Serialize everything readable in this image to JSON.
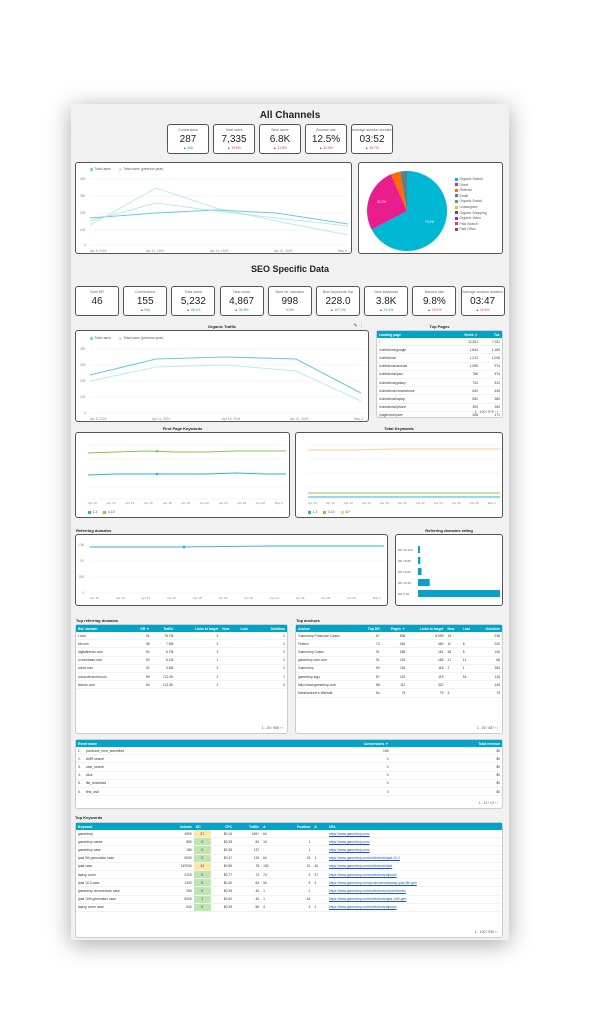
{
  "all_channels": {
    "title": "All Channels",
    "scorecards": [
      {
        "label": "Conversions",
        "value": "287",
        "delta": "▲ N/A",
        "dir": "up"
      },
      {
        "label": "Total users",
        "value": "7,335",
        "delta": "▲ 19.8%",
        "dir": "down"
      },
      {
        "label": "New users",
        "value": "6.8K",
        "delta": "▲ 21.8%",
        "dir": "down"
      },
      {
        "label": "Bounce rate",
        "value": "12.5%",
        "delta": "▲ 42.9%",
        "dir": "down"
      },
      {
        "label": "Average session duration",
        "value": "03:52",
        "delta": "▲ 16.7%",
        "dir": "down"
      }
    ]
  },
  "seo": {
    "title": "SEO Specific Data",
    "scorecards": [
      {
        "label": "Num DR",
        "value": "46",
        "delta": "",
        "dir": "up"
      },
      {
        "label": "Conversions",
        "value": "155",
        "delta": "▲ N/A",
        "dir": "up"
      },
      {
        "label": "Total users",
        "value": "5,232",
        "delta": "▲ 28.1%",
        "dir": "up"
      },
      {
        "label": "New users",
        "value": "4,867",
        "delta": "▲ 31.8%",
        "dir": "up"
      },
      {
        "label": "Num ref. domains",
        "value": "998",
        "delta": "0.0%",
        "dir": "up"
      },
      {
        "label": "Num keywords Top",
        "value": "228.0",
        "delta": "▲ 107.1%",
        "dir": "up"
      },
      {
        "label": "Num keywords",
        "value": "3.8K",
        "delta": "▲ 21.3%",
        "dir": "up"
      },
      {
        "label": "Bounce rate",
        "value": "9.8%",
        "delta": "▲ 23.9%",
        "dir": "down"
      },
      {
        "label": "Average session duration",
        "value": "03:47",
        "delta": "▲ 11.6%",
        "dir": "down"
      }
    ]
  },
  "charts": {
    "total_users": {
      "legend": [
        "Total users",
        "Total users (previous year)"
      ],
      "x_labels": [
        "Apr 6, 2024",
        "Apr 11, 2024",
        "Apr 16, 2024",
        "Apr 21, 2024",
        "May 4"
      ],
      "y_labels": [
        "400",
        "300",
        "200",
        "100",
        "0"
      ]
    },
    "pie": {
      "legend": [
        "Organic Search",
        "Direct",
        "Referral",
        "Email",
        "Organic Social",
        "Unassigned",
        "Organic Shopping",
        "Organic Video",
        "Paid Search",
        "Paid Other"
      ],
      "colors": [
        "#00b8d4",
        "#e91e8c",
        "#ff6d00",
        "#607d8b",
        "#4caf50",
        "#ffc107",
        "#3f51b5",
        "#9c27b0",
        "#f44336",
        "#795548"
      ],
      "slice_labels": [
        "70.3%",
        "21.2%"
      ]
    },
    "organic_traffic": {
      "title": "Organic Traffic",
      "legend": [
        "Total users",
        "Total users (previous year)"
      ],
      "x_labels": [
        "Apr 8, 2024",
        "Apr 11, 2024",
        "Apr 15, 2024",
        "Apr 21, 2024",
        "May 4"
      ],
      "y_labels": [
        "400",
        "300",
        "200",
        "100",
        "0"
      ]
    },
    "first_page_keywords": {
      "title": "First Page Keywords",
      "x_labels": [
        "Apr 10",
        "Apr 12",
        "Apr 14",
        "Apr 16",
        "Apr 18",
        "Apr 20",
        "Apr 22",
        "Apr 24",
        "Apr 26",
        "Apr 28",
        "May 2"
      ],
      "legend": [
        "1-3",
        "4-10"
      ]
    },
    "total_keywords": {
      "title": "Total Keywords",
      "x_labels": [
        "Apr 10",
        "Apr 12",
        "Apr 14",
        "Apr 16",
        "Apr 18",
        "Apr 20",
        "Apr 22",
        "Apr 24",
        "Apr 26",
        "Apr 28",
        "May 2"
      ],
      "legend": [
        "1-3",
        "4-10",
        "11+"
      ]
    },
    "referring_domains": {
      "title": "Referring domains",
      "x_labels": [
        "Apr 10",
        "Apr 12",
        "Apr 14",
        "Apr 16",
        "Apr 18",
        "Apr 20",
        "Apr 22",
        "Apr 24",
        "Apr 26",
        "Apr 28",
        "Apr 30",
        "May 2"
      ],
      "y_labels": [
        "1.5K",
        "1K",
        "500",
        "0"
      ]
    },
    "referring_domains_rating": {
      "title": "Referring domains rating",
      "categories": [
        "DR 90-100",
        "DR 70-89",
        "DR 50-69",
        "DR 30-49",
        "DR 0-29"
      ],
      "values": [
        4,
        12,
        18,
        60,
        420
      ],
      "value_labels": [
        "",
        "",
        "",
        "",
        ""
      ]
    }
  },
  "top_pages": {
    "title": "Top Pages",
    "headers": [
      "Landing page",
      "Views ▼",
      "Tot."
    ],
    "rows": [
      [
        "/",
        "12,811",
        "7,011"
      ],
      [
        "/collections/google",
        "1,844",
        "1,180"
      ],
      [
        "/collections/",
        "1,212",
        "1,026"
      ],
      [
        "/collections/android",
        "1,088",
        "974"
      ],
      [
        "/collections/ipad",
        "786",
        "574"
      ],
      [
        "/collections/galaxy",
        "724",
        "512"
      ],
      [
        "/collections/chromebook",
        "640",
        "445"
      ],
      [
        "/collections/laptop",
        "552",
        "380"
      ],
      [
        "/collections/iphone",
        "390",
        "260"
      ],
      [
        "/pages/compare",
        "266",
        "171"
      ]
    ],
    "pager": "1 - 100 / 572"
  },
  "top_referring": {
    "title": "Top referring domains",
    "headers": [
      "Ref. domain",
      "DR ▼",
      "Traffic",
      "Links to target",
      "New",
      "Lost",
      "Dofollow"
    ],
    "rows": [
      [
        "t.com",
        "91",
        "78.7M",
        "2",
        "",
        "",
        "2"
      ],
      [
        "bit.com",
        "95",
        "7.5M",
        "2",
        "",
        "",
        "2"
      ],
      [
        "digitaltrends.com",
        "94",
        "6.7M",
        "2",
        "",
        "",
        "2"
      ],
      [
        "crunchbase.com",
        "90",
        "6.1M",
        "1",
        "",
        "",
        "2"
      ],
      [
        "zdnet.com",
        "92",
        "3.6M",
        "2",
        "",
        "",
        "2"
      ],
      [
        "computerworld.com",
        "89",
        "722.2K",
        "2",
        "",
        "",
        "1"
      ],
      [
        "fabook.com",
        "84",
        "121.5K",
        "2",
        "",
        "",
        "2"
      ]
    ],
    "pager": "1 - 25 / 988"
  },
  "top_anchors": {
    "title": "Top anchors",
    "headers": [
      "Anchor",
      "Top DR",
      "Pages ▼",
      "Links to target",
      "New",
      "Lost",
      "Dofollow"
    ],
    "rows": [
      [
        "Gamedrop Protection Cases",
        "87",
        "836",
        "5,399",
        "19",
        "",
        "236"
      ],
      [
        "Fintech",
        "73",
        "446",
        "460",
        "11",
        "6",
        "220"
      ],
      [
        "Gamedrop Cases",
        "91",
        "186",
        "181",
        "18",
        "5",
        "106"
      ],
      [
        "gamedrop.com.com",
        "91",
        "119",
        "168",
        "17",
        "11",
        "66"
      ],
      [
        "Gamedrop",
        "90",
        "118",
        "118",
        "2",
        "1",
        "283"
      ],
      [
        "gamedrop.logo",
        "87",
        "119",
        "119",
        "",
        "54",
        "115"
      ],
      [
        "http://www.gamedrop.com",
        "88",
        "111",
        "322",
        "",
        "",
        "149"
      ],
      [
        "Manufacturer's Website",
        "54",
        "79",
        "79",
        "3",
        "",
        "79"
      ]
    ],
    "pager": "1 - 25 / 487"
  },
  "events": {
    "headers": [
      "Event name",
      "Conversions ▼",
      "Total revenue"
    ],
    "rows": [
      [
        "1.",
        "purchase_form_submitted",
        "155",
        "$0"
      ],
      [
        "2.",
        "AMR search",
        "0",
        "$0"
      ],
      [
        "3.",
        "user_search",
        "0",
        "$0"
      ],
      [
        "4.",
        "click",
        "0",
        "$0"
      ],
      [
        "5.",
        "file_download",
        "0",
        "$0"
      ],
      [
        "6.",
        "first_visit",
        "0",
        "$0"
      ]
    ],
    "pager": "1 - 13 / 13"
  },
  "top_keywords": {
    "title": "Top Keywords",
    "headers": [
      "Keyword",
      "Volume",
      "KD",
      "CPC",
      "Traffic",
      "Δ",
      "Position",
      "Δ",
      "URL"
    ],
    "rows": [
      [
        "gamedrop",
        "4990",
        "37",
        "$0.16",
        "199+",
        "64",
        "",
        "",
        "https://www.gamedrop.com/"
      ],
      [
        "gamedrop cases",
        "880",
        "0",
        "$0.35",
        "84",
        "16",
        "1",
        "",
        "https://www.gamedrop.com/"
      ],
      [
        "gamedrop case",
        "180",
        "0",
        "$0.35",
        "137",
        "",
        "1",
        "",
        "https://www.gamedrop.com/"
      ],
      [
        "ipad 9th generation case",
        "9000",
        "0",
        "$0.47",
        "115",
        "64",
        "15",
        "1",
        "https://www.gamedrop.com/collections/ipad-10-2"
      ],
      [
        "ipad case",
        "167000",
        "24",
        "$0.55",
        "78",
        "152",
        "21",
        "16",
        "https://www.gamedrop.com/collections/ipad"
      ],
      [
        "laptop cover",
        "2100",
        "0",
        "$0.77",
        "74",
        "74",
        "4",
        "37",
        "https://www.gamedrop.com/collections/laptops"
      ],
      [
        "ipad 10.2 case",
        "1300",
        "0",
        "$0.40",
        "63",
        "50",
        "9",
        "4",
        "https://www.gamedrop.com/products/hideaway-ipad-9th-gen"
      ],
      [
        "gamedrop chromebook case",
        "250",
        "0",
        "$0.35",
        "40",
        "1",
        "1",
        "",
        "https://www.gamedrop.com/collections/chromebooks"
      ],
      [
        "ipad 10th generation case",
        "9000",
        "1",
        "$0.62",
        "40",
        "1",
        "16",
        "",
        "https://www.gamedrop.com/collections/ipad-10th-gen"
      ],
      [
        "laptop cover case",
        "640",
        "0",
        "$0.39",
        "56",
        "4",
        "3",
        "1",
        "https://www.gamedrop.com/collections/laptops"
      ]
    ],
    "pager": "1 - 100 / 930"
  }
}
